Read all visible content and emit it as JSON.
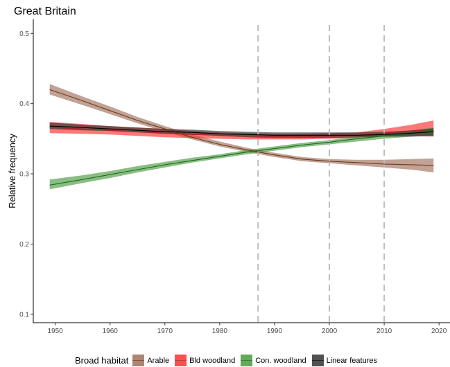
{
  "chart_data": {
    "type": "line",
    "title": "Great Britain",
    "ylabel": "Relative frequency",
    "xlabel": "",
    "xlim": [
      1946,
      2022
    ],
    "ylim": [
      0.088,
      0.52
    ],
    "x_ticks": [
      1950,
      1960,
      1970,
      1980,
      1990,
      2000,
      2010,
      2020
    ],
    "y_ticks": [
      0.1,
      0.2,
      0.3,
      0.4,
      0.5
    ],
    "y_tick_labels": [
      "0.1",
      "0.2",
      "0.3",
      "0.4",
      "0.5"
    ],
    "vlines": [
      1987,
      2000,
      2010
    ],
    "grid": false,
    "legend": {
      "title": "Broad habitat",
      "position": "bottom"
    },
    "series": [
      {
        "name": "Arable",
        "color": "#6b3a1f",
        "band_color": "#a0705a",
        "x": [
          1949,
          1955,
          1960,
          1965,
          1970,
          1975,
          1980,
          1985,
          1990,
          1995,
          2000,
          2005,
          2010,
          2015,
          2019
        ],
        "y": [
          0.42,
          0.404,
          0.39,
          0.376,
          0.364,
          0.352,
          0.342,
          0.334,
          0.327,
          0.321,
          0.318,
          0.316,
          0.314,
          0.313,
          0.312
        ],
        "lower": [
          0.413,
          0.398,
          0.385,
          0.372,
          0.36,
          0.349,
          0.339,
          0.331,
          0.324,
          0.318,
          0.315,
          0.312,
          0.309,
          0.306,
          0.302
        ],
        "upper": [
          0.428,
          0.41,
          0.396,
          0.381,
          0.368,
          0.356,
          0.346,
          0.337,
          0.33,
          0.324,
          0.321,
          0.32,
          0.32,
          0.321,
          0.322
        ]
      },
      {
        "name": "Bld woodland",
        "color": "#b22222",
        "band_color": "#ff3030",
        "x": [
          1949,
          1955,
          1960,
          1965,
          1970,
          1975,
          1980,
          1985,
          1990,
          1995,
          2000,
          2005,
          2010,
          2015,
          2019
        ],
        "y": [
          0.366,
          0.364,
          0.362,
          0.36,
          0.358,
          0.356,
          0.355,
          0.354,
          0.353,
          0.353,
          0.354,
          0.355,
          0.358,
          0.361,
          0.364
        ],
        "lower": [
          0.358,
          0.357,
          0.356,
          0.354,
          0.352,
          0.351,
          0.35,
          0.349,
          0.349,
          0.349,
          0.35,
          0.351,
          0.353,
          0.354,
          0.353
        ],
        "upper": [
          0.374,
          0.371,
          0.368,
          0.366,
          0.364,
          0.361,
          0.359,
          0.358,
          0.357,
          0.357,
          0.358,
          0.359,
          0.364,
          0.37,
          0.376
        ]
      },
      {
        "name": "Con. woodland",
        "color": "#1a6b1a",
        "band_color": "#4c9a40",
        "x": [
          1949,
          1955,
          1960,
          1965,
          1970,
          1975,
          1980,
          1985,
          1990,
          1995,
          2000,
          2005,
          2010,
          2015,
          2019
        ],
        "y": [
          0.284,
          0.292,
          0.299,
          0.306,
          0.313,
          0.319,
          0.325,
          0.331,
          0.336,
          0.341,
          0.345,
          0.35,
          0.354,
          0.358,
          0.361
        ],
        "lower": [
          0.278,
          0.287,
          0.294,
          0.302,
          0.309,
          0.316,
          0.322,
          0.328,
          0.333,
          0.338,
          0.342,
          0.346,
          0.35,
          0.353,
          0.355
        ],
        "upper": [
          0.292,
          0.298,
          0.304,
          0.311,
          0.317,
          0.323,
          0.328,
          0.334,
          0.339,
          0.344,
          0.348,
          0.353,
          0.358,
          0.362,
          0.366
        ]
      },
      {
        "name": "Linear features",
        "color": "#000000",
        "band_color": "#333333",
        "x": [
          1949,
          1955,
          1960,
          1965,
          1970,
          1975,
          1980,
          1985,
          1990,
          1995,
          2000,
          2005,
          2010,
          2015,
          2019
        ],
        "y": [
          0.368,
          0.366,
          0.364,
          0.362,
          0.36,
          0.359,
          0.357,
          0.356,
          0.355,
          0.355,
          0.355,
          0.355,
          0.356,
          0.358,
          0.36
        ],
        "lower": [
          0.364,
          0.362,
          0.361,
          0.359,
          0.357,
          0.356,
          0.354,
          0.352,
          0.351,
          0.351,
          0.351,
          0.352,
          0.353,
          0.353,
          0.354
        ],
        "upper": [
          0.373,
          0.37,
          0.368,
          0.366,
          0.364,
          0.363,
          0.361,
          0.36,
          0.359,
          0.359,
          0.359,
          0.359,
          0.36,
          0.362,
          0.365
        ]
      }
    ]
  }
}
